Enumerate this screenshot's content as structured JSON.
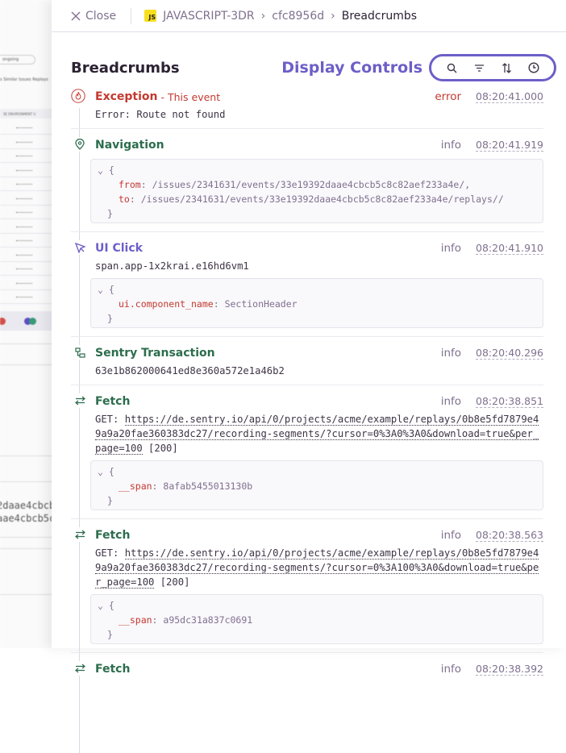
{
  "background": {
    "pill": "ongoing",
    "tabs": "s  Similar Issues  Replays",
    "table_header": "SE   ENVIRONMENT   U",
    "hash_lines": [
      "2daae4cbcb",
      "aae4cbcb5c"
    ]
  },
  "header": {
    "close_label": "Close",
    "breadcrumbs": [
      "JAVASCRIPT-3DR",
      "cfc8956d",
      "Breadcrumbs"
    ],
    "project_badge": "JS"
  },
  "title": "Breadcrumbs",
  "display_controls": {
    "label": "Display Controls",
    "icons": [
      "search-icon",
      "filter-icon",
      "sort-icon",
      "clock-icon"
    ]
  },
  "colors": {
    "accent": "#6c5fc7",
    "error": "#c4392f",
    "green": "#2c6d4d"
  },
  "entries": [
    {
      "type": "Exception",
      "subtitle": "- This event",
      "level": "error",
      "time": "08:20:41.000",
      "message": "Error: Route not found"
    },
    {
      "type": "Navigation",
      "level": "info",
      "time": "08:20:41.919",
      "data": {
        "open": "{",
        "close": "}",
        "from_key": "from",
        "from": "/issues/2341631/events/33e19392daae4cbcb5c8c82aef233a4e/,",
        "to_key": "to",
        "to": "/issues/2341631/events/33e19392daae4cbcb5c8c82aef233a4e/replays//"
      }
    },
    {
      "type": "UI Click",
      "level": "info",
      "time": "08:20:41.910",
      "message": "span.app-1x2krai.e16hd6vm1",
      "data": {
        "open": "{",
        "close": "}",
        "key": "ui.component_name",
        "value": "SectionHeader"
      }
    },
    {
      "type": "Sentry Transaction",
      "level": "info",
      "time": "08:20:40.296",
      "message": "63e1b862000641ed8e360a572e1a46b2"
    },
    {
      "type": "Fetch",
      "level": "info",
      "time": "08:20:38.851",
      "method": "GET:",
      "url": "https://de.sentry.io/api/0/projects/acme/example/replays/0b8e5fd7879e49a9a20fae360383dc27/recording-segments/?cursor=0%3A0%3A0&download=true&per_page=100",
      "status": "[200]",
      "data": {
        "open": "{",
        "close": "}",
        "key": "__span",
        "value": "8afab5455013130b"
      }
    },
    {
      "type": "Fetch",
      "level": "info",
      "time": "08:20:38.563",
      "method": "GET:",
      "url": "https://de.sentry.io/api/0/projects/acme/example/replays/0b8e5fd7879e49a9a20fae360383dc27/recording-segments/?cursor=0%3A100%3A0&download=true&per_page=100",
      "status": "[200]",
      "data": {
        "open": "{",
        "close": "}",
        "key": "__span",
        "value": "a95dc31a837c0691"
      }
    },
    {
      "type": "Fetch",
      "level": "info",
      "time": "08:20:38.392"
    }
  ]
}
